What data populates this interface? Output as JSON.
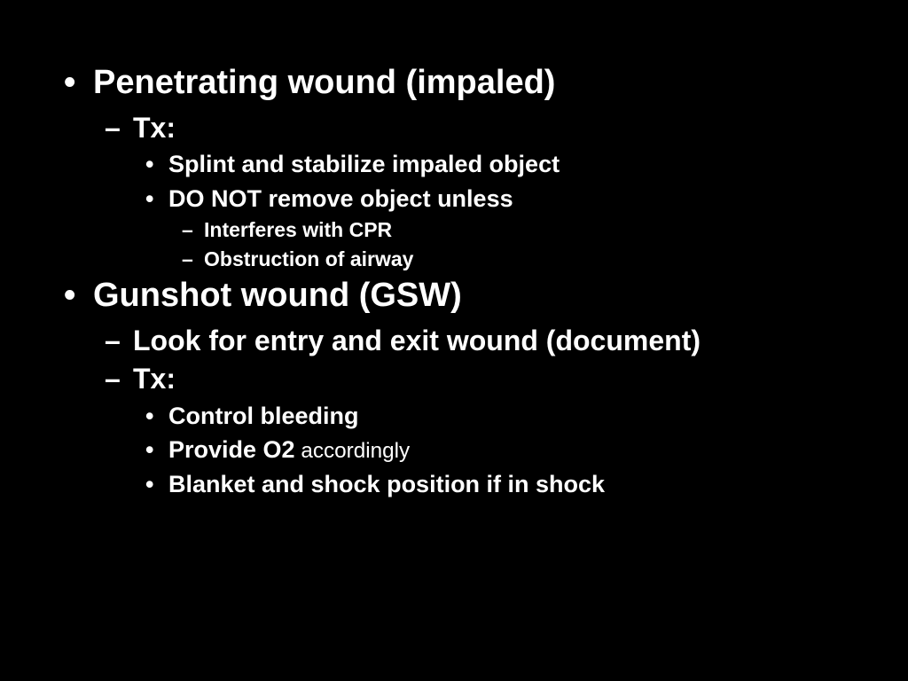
{
  "slide": {
    "background_color": "#000000",
    "text_color": "#ffffff",
    "font_family": "Arial",
    "font_weight": "bold",
    "items": [
      {
        "level": 1,
        "text": "Penetrating wound (impaled)",
        "children": [
          {
            "level": 2,
            "text": "Tx:",
            "children": [
              {
                "level": 3,
                "text": "Splint and stabilize impaled object"
              },
              {
                "level": 3,
                "text": "DO NOT remove object unless",
                "children": [
                  {
                    "level": 4,
                    "text": "Interferes with CPR"
                  },
                  {
                    "level": 4,
                    "text": "Obstruction of airway"
                  }
                ]
              }
            ]
          }
        ]
      },
      {
        "level": 1,
        "text": "Gunshot wound (GSW)",
        "children": [
          {
            "level": 2,
            "text": "Look for entry and exit wound (document)"
          },
          {
            "level": 2,
            "text": "Tx:",
            "children": [
              {
                "level": 3,
                "text": "Control bleeding"
              },
              {
                "level": 3,
                "text_prefix": "Provide O2",
                "text_suffix": " accordingly"
              },
              {
                "level": 3,
                "text": "Blanket and shock position if in shock"
              }
            ]
          }
        ]
      }
    ]
  }
}
